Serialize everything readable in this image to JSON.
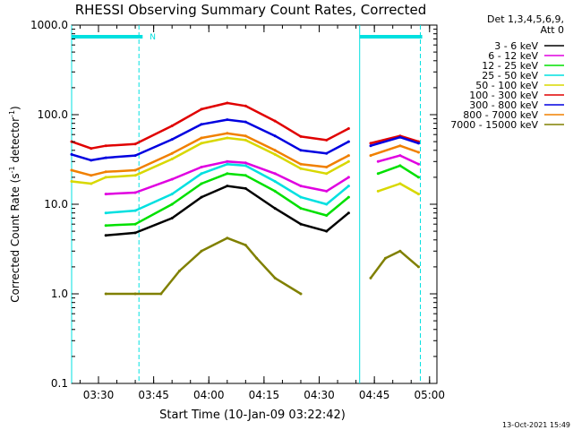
{
  "chart_data": {
    "type": "line",
    "title": "RHESSI Observing Summary Count Rates, Corrected",
    "xlabel": "Start Time (10-Jan-09 03:22:42)",
    "ylabel": "Corrected Count Rate (s",
    "ylabel_sup1": "-1",
    "ylabel_mid": " detector",
    "ylabel_sup2": "-1",
    "ylabel_end": ")",
    "yscale": "log",
    "ylim": [
      0.1,
      1000
    ],
    "xlim": [
      "03:22:42",
      "05:02:00"
    ],
    "x_ticks": [
      "03:30",
      "03:45",
      "04:00",
      "04:15",
      "04:30",
      "04:45",
      "05:00"
    ],
    "y_ticks": [
      "0.1",
      "1.0",
      "10.0",
      "100.0",
      "1000.0"
    ],
    "legend_title_line1": "Det 1,3,4,5,6,9,",
    "legend_title_line2": "Att 0",
    "legend_position": "top-right",
    "footer": "13-Oct-2021 15:49",
    "night_label": "N",
    "night_intervals": [
      [
        "03:22:42",
        "03:42:00"
      ],
      [
        "04:41:00",
        "04:58:00"
      ]
    ],
    "saa_boundaries": [
      "03:22:42",
      "03:41:00",
      "04:41:00",
      "04:57:30"
    ],
    "gaps": [
      [
        "04:39:00",
        "04:43:00"
      ]
    ],
    "series": [
      {
        "name": "3 - 6 keV",
        "color": "#000000",
        "x": [
          "03:32",
          "03:40",
          "03:50",
          "03:58",
          "04:05",
          "04:10",
          "04:18",
          "04:25",
          "04:32",
          "04:38"
        ],
        "y": [
          4.5,
          4.8,
          7,
          12,
          16,
          15,
          9,
          6,
          5,
          8
        ]
      },
      {
        "name": "6 - 12 keV",
        "color": "#e000e0",
        "x": [
          "03:32",
          "03:40",
          "03:50",
          "03:58",
          "04:05",
          "04:10",
          "04:18",
          "04:25",
          "04:32",
          "04:38",
          "04:46",
          "04:52",
          "04:57"
        ],
        "y": [
          13,
          13.5,
          19,
          26,
          30,
          29,
          22,
          16,
          14,
          20,
          30,
          35,
          28
        ]
      },
      {
        "name": "12 - 25 keV",
        "color": "#00e000",
        "x": [
          "03:32",
          "03:40",
          "03:50",
          "03:58",
          "04:05",
          "04:10",
          "04:18",
          "04:25",
          "04:32",
          "04:38",
          "04:46",
          "04:52",
          "04:57"
        ],
        "y": [
          5.8,
          6,
          10,
          17,
          22,
          21,
          14,
          9,
          7.5,
          12,
          22,
          27,
          20
        ]
      },
      {
        "name": "25 - 50 keV",
        "color": "#00e0e0",
        "x": [
          "03:32",
          "03:40",
          "03:50",
          "03:58",
          "04:05",
          "04:10",
          "04:18",
          "04:25",
          "04:32",
          "04:38"
        ],
        "y": [
          8,
          8.5,
          13,
          22,
          28,
          27,
          18,
          12,
          10,
          16
        ]
      },
      {
        "name": "50 - 100 keV",
        "color": "#d8d800",
        "x": [
          "03:22:42",
          "03:28",
          "03:32",
          "03:40",
          "03:50",
          "03:58",
          "04:05",
          "04:10",
          "04:18",
          "04:25",
          "04:32",
          "04:38",
          "04:46",
          "04:52",
          "04:57"
        ],
        "y": [
          18,
          17,
          20,
          21,
          32,
          48,
          55,
          52,
          36,
          25,
          22,
          30,
          14,
          17,
          13
        ]
      },
      {
        "name": "100 - 300 keV",
        "color": "#e00000",
        "x": [
          "03:22:42",
          "03:28",
          "03:32",
          "03:40",
          "03:50",
          "03:58",
          "04:05",
          "04:10",
          "04:18",
          "04:25",
          "04:32",
          "04:38",
          "04:44",
          "04:52",
          "04:57"
        ],
        "y": [
          50,
          42,
          45,
          47,
          75,
          115,
          135,
          125,
          85,
          57,
          52,
          70,
          48,
          58,
          50
        ]
      },
      {
        "name": "300 - 800 keV",
        "color": "#0000e0",
        "x": [
          "03:22:42",
          "03:28",
          "03:32",
          "03:40",
          "03:50",
          "03:58",
          "04:05",
          "04:10",
          "04:18",
          "04:25",
          "04:32",
          "04:38",
          "04:44",
          "04:52",
          "04:57"
        ],
        "y": [
          36,
          31,
          33,
          35,
          53,
          78,
          88,
          83,
          58,
          40,
          37,
          50,
          45,
          56,
          48
        ]
      },
      {
        "name": "800 - 7000 keV",
        "color": "#f08000",
        "x": [
          "03:22:42",
          "03:28",
          "03:32",
          "03:40",
          "03:50",
          "03:58",
          "04:05",
          "04:10",
          "04:18",
          "04:25",
          "04:32",
          "04:38",
          "04:44",
          "04:52",
          "04:57"
        ],
        "y": [
          24,
          21,
          23,
          24,
          37,
          55,
          62,
          58,
          40,
          28,
          26,
          35,
          35,
          45,
          38
        ]
      },
      {
        "name": "7000 - 15000 keV",
        "color": "#808000",
        "x": [
          "03:32",
          "03:40",
          "03:47",
          "03:52",
          "03:58",
          "04:05",
          "04:10",
          "04:13",
          "04:18",
          "04:25",
          "04:44",
          "04:48",
          "04:52",
          "04:57"
        ],
        "y": [
          1,
          1,
          1,
          1.8,
          3,
          4.2,
          3.5,
          2.5,
          1.5,
          1,
          1.5,
          2.5,
          3,
          2
        ]
      }
    ]
  }
}
